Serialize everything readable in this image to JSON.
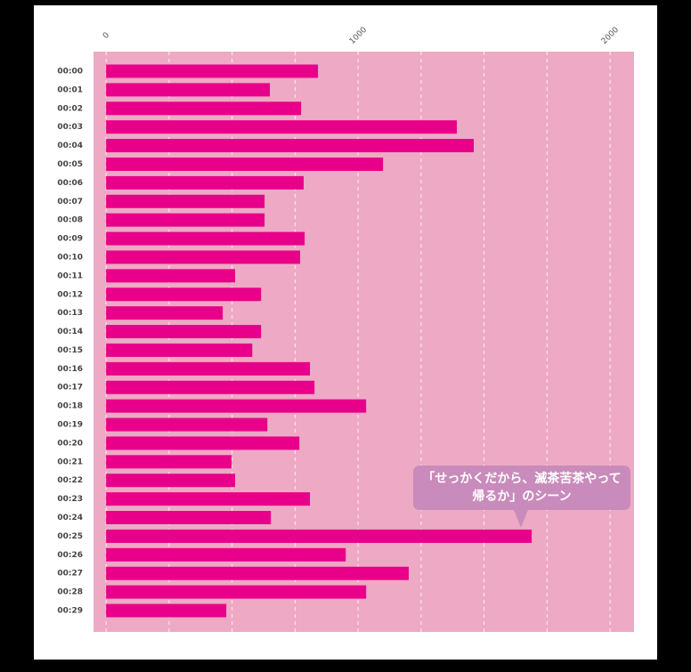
{
  "chart_data": {
    "type": "bar",
    "orientation": "horizontal",
    "categories": [
      "00:00",
      "00:01",
      "00:02",
      "00:03",
      "00:04",
      "00:05",
      "00:06",
      "00:07",
      "00:08",
      "00:09",
      "00:10",
      "00:11",
      "00:12",
      "00:13",
      "00:14",
      "00:15",
      "00:16",
      "00:17",
      "00:18",
      "00:19",
      "00:20",
      "00:21",
      "00:22",
      "00:23",
      "00:24",
      "00:25",
      "00:26",
      "00:27",
      "00:28",
      "00:29"
    ],
    "values": [
      841,
      650,
      774,
      1392,
      1459,
      1099,
      784,
      629,
      629,
      788,
      770,
      512,
      615,
      463,
      615,
      580,
      809,
      827,
      1032,
      640,
      767,
      498,
      512,
      809,
      654,
      1689,
      951,
      1201,
      1032,
      477
    ],
    "color": "#e8008a",
    "background": "#eeaac4",
    "xlim": [
      -50,
      2095
    ],
    "xticks": [
      0,
      1000,
      2000
    ],
    "minor_grid": [
      250,
      500,
      750,
      1250,
      1500,
      1750
    ],
    "grid": true,
    "annotation": {
      "lines": [
        "「せっかくだから、滅茶苦茶やって",
        "帰るか」のシーン"
      ],
      "category_index": 25,
      "color": "#c98bbb"
    }
  }
}
